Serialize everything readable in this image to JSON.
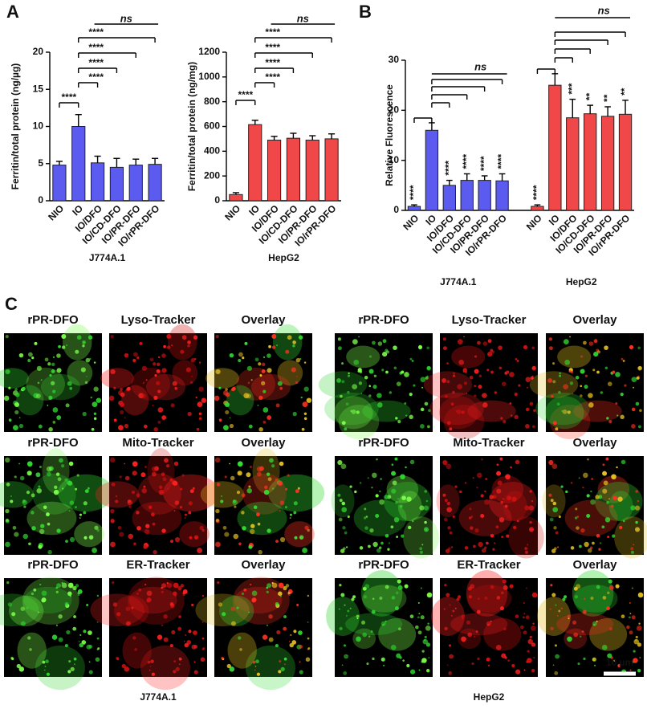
{
  "panels": [
    "A",
    "B",
    "C"
  ],
  "chart_data": [
    {
      "type": "bar",
      "ylabel": "Ferritin/total protein (ng/µg)",
      "xlabel": "J774A.1",
      "categories": [
        "NIO",
        "IO",
        "IO/DFO",
        "IO/CD-DFO",
        "IO/PR-DFO",
        "IO/rPR-DFO"
      ],
      "values": [
        4.8,
        10,
        5.1,
        4.5,
        4.8,
        4.9
      ],
      "errors": [
        0.5,
        1.6,
        0.9,
        1.2,
        0.8,
        0.8
      ],
      "color": "#5b5bf0",
      "ylim": [
        0,
        20
      ],
      "yticks": [
        0,
        5,
        10,
        15,
        20
      ],
      "annotations": [
        "****",
        "****",
        "****",
        "****",
        "****",
        "ns"
      ]
    },
    {
      "type": "bar",
      "ylabel": "Ferritin/total protein (ng/mg)",
      "xlabel": "HepG2",
      "categories": [
        "NIO",
        "IO",
        "IO/DFO",
        "IO/CD-DFO",
        "IO/PR-DFO",
        "IO/rPR-DFO"
      ],
      "values": [
        50,
        615,
        490,
        505,
        490,
        500
      ],
      "errors": [
        15,
        35,
        30,
        40,
        35,
        40
      ],
      "color": "#f04848",
      "ylim": [
        0,
        1200
      ],
      "yticks": [
        0,
        200,
        400,
        600,
        800,
        1000,
        1200
      ],
      "annotations": [
        "****",
        "****",
        "****",
        "****",
        "****",
        "ns"
      ]
    },
    {
      "type": "grouped_bar",
      "ylabel": "Relative Fluorescence",
      "categories": [
        "NIO",
        "IO",
        "IO/DFO",
        "IO/CD-DFO",
        "IO/PR-DFO",
        "IO/rPR-DFO"
      ],
      "groups": [
        {
          "label": "J774A.1",
          "color": "#5b5bf0",
          "values": [
            0.8,
            16,
            5,
            6,
            6,
            5.9
          ],
          "errors": [
            0.3,
            1.5,
            1,
            1.3,
            0.9,
            1.4
          ],
          "annotations": [
            "****",
            "****",
            "****",
            "****",
            "****",
            "ns"
          ]
        },
        {
          "label": "HepG2",
          "color": "#f04848",
          "values": [
            0.8,
            25,
            18.5,
            19.3,
            18.8,
            19.2
          ],
          "errors": [
            0.3,
            2.3,
            3.7,
            1.7,
            1.9,
            2.8
          ],
          "annotations": [
            "****",
            "***",
            "**",
            "**",
            "**",
            "ns"
          ]
        }
      ],
      "ylim": [
        0,
        30
      ],
      "yticks": [
        0,
        10,
        20,
        30
      ]
    }
  ],
  "microscopy": {
    "cell_lines": [
      {
        "label": "J774A.1",
        "rows": [
          [
            "rPR-DFO",
            "Lyso-Tracker",
            "Overlay"
          ],
          [
            "rPR-DFO",
            "Mito-Tracker",
            "Overlay"
          ],
          [
            "rPR-DFO",
            "ER-Tracker",
            "Overlay"
          ]
        ]
      },
      {
        "label": "HepG2",
        "rows": [
          [
            "rPR-DFO",
            "Lyso-Tracker",
            "Overlay"
          ],
          [
            "rPR-DFO",
            "Mito-Tracker",
            "Overlay"
          ],
          [
            "rPR-DFO",
            "ER-Tracker",
            "Overlay"
          ]
        ]
      }
    ],
    "scale_bar": "10 µm"
  }
}
